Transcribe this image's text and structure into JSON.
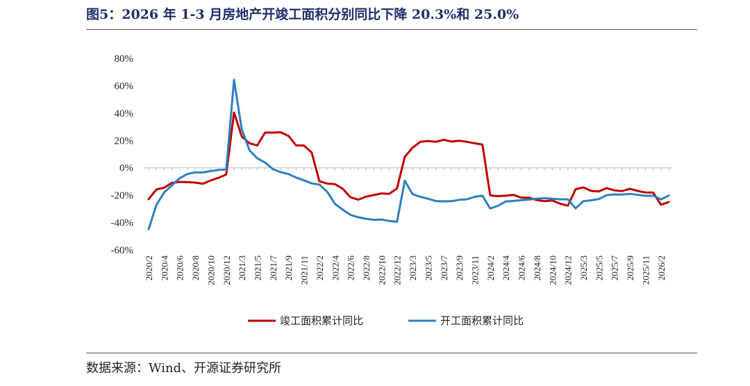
{
  "title": "图5：2026 年 1-3 月房地产开竣工面积分别同比下降 20.3%和 25.0%",
  "source": "数据来源：Wind、开源证券研究所",
  "chart_data": {
    "type": "line",
    "ylim": [
      -60,
      80
    ],
    "yticks": [
      "80%",
      "60%",
      "40%",
      "20%",
      "0%",
      "-20%",
      "-40%",
      "-60%"
    ],
    "ytick_values": [
      80,
      60,
      40,
      20,
      0,
      -20,
      -40,
      -60
    ],
    "x": [
      "2020/2",
      "2020/3",
      "2020/4",
      "2020/5",
      "2020/6",
      "2020/7",
      "2020/8",
      "2020/9",
      "2020/10",
      "2020/11",
      "2020/12",
      "2021/2",
      "2021/3",
      "2021/4",
      "2021/5",
      "2021/6",
      "2021/7",
      "2021/8",
      "2021/9",
      "2021/10",
      "2021/11",
      "2021/12",
      "2022/2",
      "2022/3",
      "2022/4",
      "2022/5",
      "2022/6",
      "2022/7",
      "2022/8",
      "2022/9",
      "2022/10",
      "2022/11",
      "2022/12",
      "2023/2",
      "2023/3",
      "2023/4",
      "2023/5",
      "2023/6",
      "2023/7",
      "2023/8",
      "2023/9",
      "2023/10",
      "2023/11",
      "2023/12",
      "2024/2",
      "2024/3",
      "2024/4",
      "2024/5",
      "2024/6",
      "2024/7",
      "2024/8",
      "2024/9",
      "2024/10",
      "2024/11",
      "2024/12",
      "2025/2",
      "2025/3",
      "2025/4",
      "2025/5",
      "2025/6",
      "2025/7",
      "2025/8",
      "2025/9",
      "2025/10",
      "2025/11",
      "2025/12",
      "2026/2",
      "2026/3"
    ],
    "xtick_labels": [
      "2020/2",
      "2020/4",
      "2020/6",
      "2020/8",
      "2020/10",
      "2020/12",
      "2021/3",
      "2021/5",
      "2021/7",
      "2021/9",
      "2021/11",
      "2022/2",
      "2022/4",
      "2022/6",
      "2022/8",
      "2022/10",
      "2022/12",
      "2023/3",
      "2023/5",
      "2023/7",
      "2023/9",
      "2023/11",
      "2024/2",
      "2024/4",
      "2024/6",
      "2024/8",
      "2024/10",
      "2024/12",
      "2025/3",
      "2025/5",
      "2025/7",
      "2025/9",
      "2025/11",
      "2026/2"
    ],
    "series": [
      {
        "name": "竣工面积累计同比",
        "color": "#c00000",
        "values": [
          -22.9,
          -15.8,
          -14.5,
          -11.0,
          -10.3,
          -10.5,
          -10.8,
          -11.6,
          -9.2,
          -7.3,
          -4.9,
          40.4,
          22.9,
          17.9,
          16.4,
          25.7,
          25.7,
          26.0,
          23.4,
          16.4,
          16.3,
          11.2,
          -9.8,
          -11.5,
          -11.9,
          -15.3,
          -21.5,
          -23.3,
          -21.1,
          -19.9,
          -18.7,
          -19.0,
          -15.0,
          8.0,
          14.7,
          19.0,
          19.6,
          19.0,
          20.5,
          19.2,
          19.8,
          19.0,
          17.9,
          17.0,
          -20.2,
          -20.7,
          -20.4,
          -19.8,
          -21.8,
          -21.8,
          -23.6,
          -24.4,
          -23.9,
          -26.2,
          -27.7,
          -15.6,
          -14.3,
          -16.9,
          -17.3,
          -14.8,
          -16.5,
          -17.0,
          -15.3,
          -16.9,
          -18.0,
          -18.1,
          -27.0,
          -25.0
        ]
      },
      {
        "name": "开工面积累计同比",
        "color": "#2e7fbf",
        "values": [
          -44.9,
          -27.2,
          -18.0,
          -12.8,
          -7.6,
          -4.5,
          -3.3,
          -3.4,
          -2.4,
          -1.6,
          -1.2,
          64.3,
          28.2,
          12.8,
          6.9,
          3.8,
          -0.9,
          -3.2,
          -4.5,
          -7.1,
          -9.1,
          -11.4,
          -12.2,
          -17.5,
          -26.3,
          -30.6,
          -34.4,
          -36.1,
          -37.2,
          -38.0,
          -37.8,
          -38.9,
          -39.4,
          -9.4,
          -19.2,
          -21.2,
          -22.6,
          -24.3,
          -24.5,
          -24.4,
          -23.4,
          -23.0,
          -21.2,
          -20.4,
          -29.7,
          -27.8,
          -24.6,
          -24.2,
          -23.7,
          -23.2,
          -22.5,
          -22.2,
          -22.6,
          -23.0,
          -23.0,
          -29.6,
          -24.4,
          -23.8,
          -22.8,
          -20.0,
          -19.4,
          -19.5,
          -19.0,
          -19.8,
          -20.5,
          -20.4,
          -23.0,
          -20.3
        ]
      }
    ],
    "legend_position": "bottom",
    "grid": false
  }
}
